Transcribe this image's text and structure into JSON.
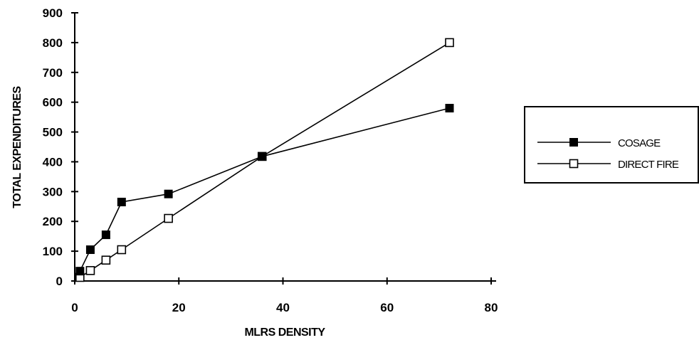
{
  "chart_data": {
    "type": "line",
    "title": "",
    "xlabel": "MLRS DENSITY",
    "ylabel": "TOTAL EXPENDITURES",
    "xlim": [
      0,
      80
    ],
    "ylim": [
      0,
      900
    ],
    "x_ticks": [
      "0",
      "20",
      "40",
      "60",
      "80"
    ],
    "y_ticks": [
      "0",
      "100",
      "200",
      "300",
      "400",
      "500",
      "600",
      "700",
      "800",
      "900"
    ],
    "grid": false,
    "legend_position": "right",
    "series": [
      {
        "name": "COSAGE",
        "marker": "filled-square",
        "color": "#000000",
        "points": [
          {
            "x": 1,
            "y": 33
          },
          {
            "x": 3,
            "y": 105
          },
          {
            "x": 6,
            "y": 155
          },
          {
            "x": 9,
            "y": 265
          },
          {
            "x": 18,
            "y": 292
          },
          {
            "x": 36,
            "y": 418
          },
          {
            "x": 72,
            "y": 580
          }
        ]
      },
      {
        "name": "DIRECT FIRE",
        "marker": "open-square",
        "color": "#000000",
        "points": [
          {
            "x": 1,
            "y": 12
          },
          {
            "x": 3,
            "y": 35
          },
          {
            "x": 6,
            "y": 70
          },
          {
            "x": 9,
            "y": 105
          },
          {
            "x": 18,
            "y": 210
          },
          {
            "x": 36,
            "y": 418
          },
          {
            "x": 72,
            "y": 800
          }
        ]
      }
    ]
  }
}
